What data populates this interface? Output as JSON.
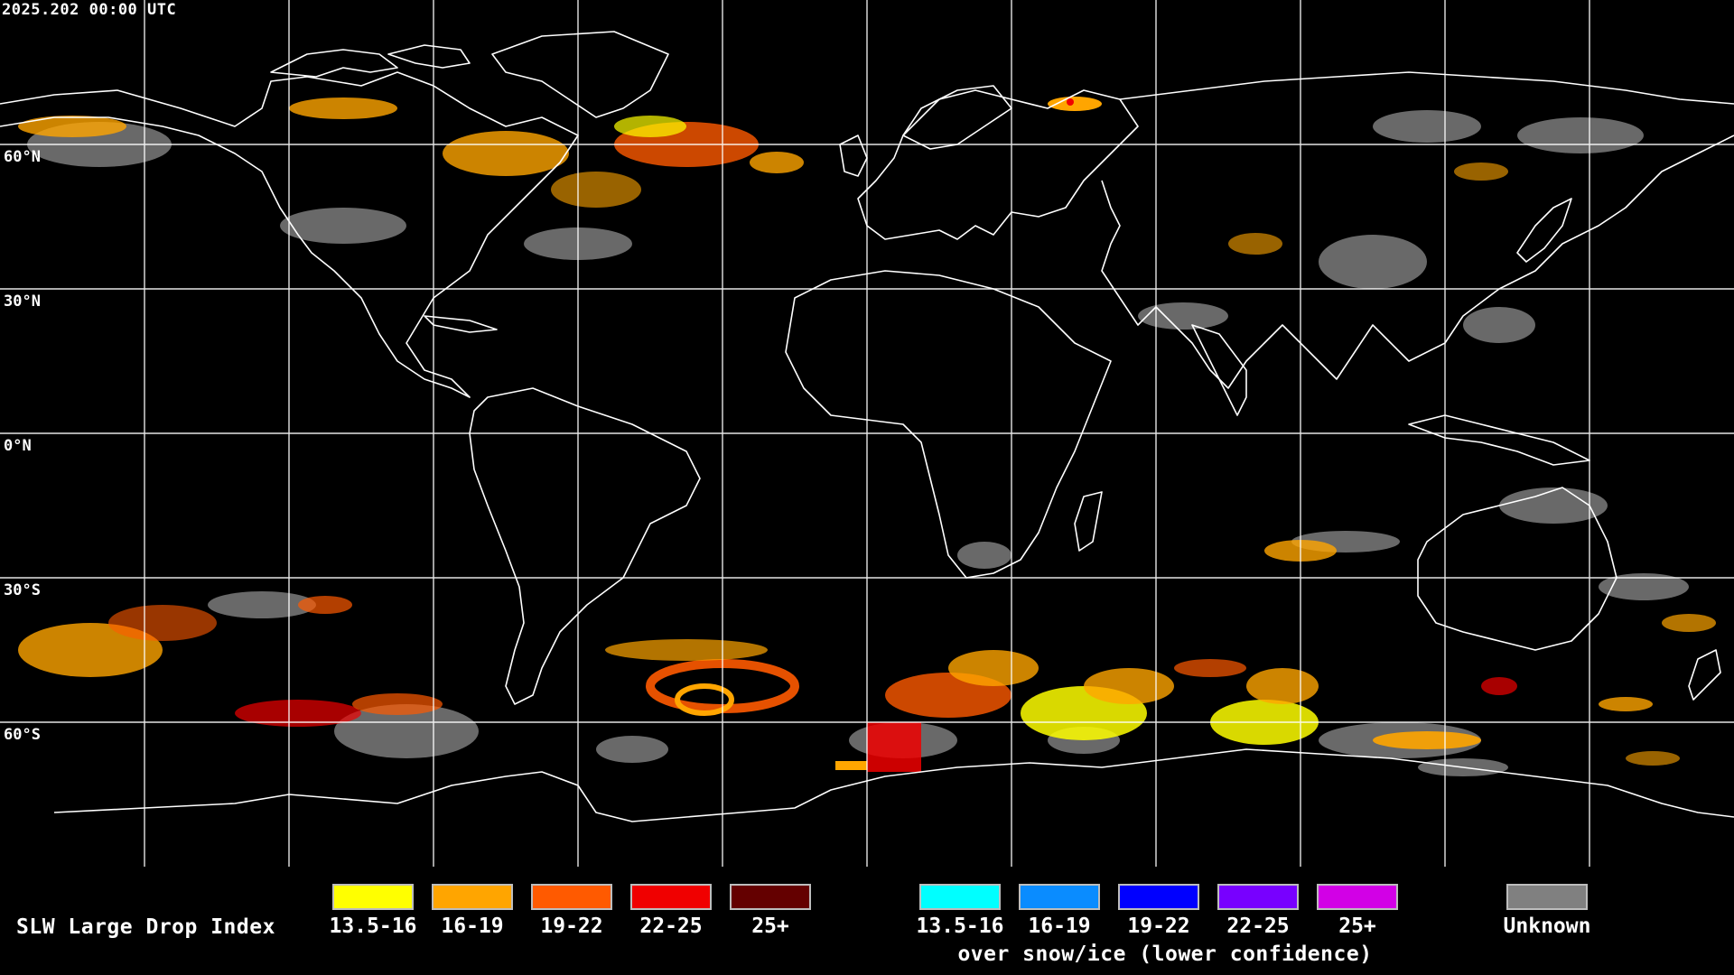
{
  "timestamp": "2025.202 00:00 UTC",
  "latitude_labels": [
    "60°N",
    "30°N",
    "0°N",
    "30°S",
    "60°S"
  ],
  "legend": {
    "title": "SLW Large Drop Index",
    "standard": [
      {
        "label": "13.5-16",
        "color": "#ffff00"
      },
      {
        "label": "16-19",
        "color": "#ffa500"
      },
      {
        "label": "19-22",
        "color": "#ff5a00"
      },
      {
        "label": "22-25",
        "color": "#f00000"
      },
      {
        "label": "25+",
        "color": "#640000"
      }
    ],
    "snow_ice": [
      {
        "label": "13.5-16",
        "color": "#00ffff"
      },
      {
        "label": "16-19",
        "color": "#0a8cff"
      },
      {
        "label": "19-22",
        "color": "#0000ff"
      },
      {
        "label": "22-25",
        "color": "#7800ff"
      },
      {
        "label": "25+",
        "color": "#d200e6"
      }
    ],
    "snow_ice_caption": "over snow/ice (lower confidence)",
    "unknown": {
      "label": "Unknown",
      "color": "#808080"
    }
  },
  "colors": {
    "background": "#000000",
    "grid": "#ffffff",
    "coastline": "#ffffff",
    "unknown_cloud": "#8c8c8c"
  }
}
